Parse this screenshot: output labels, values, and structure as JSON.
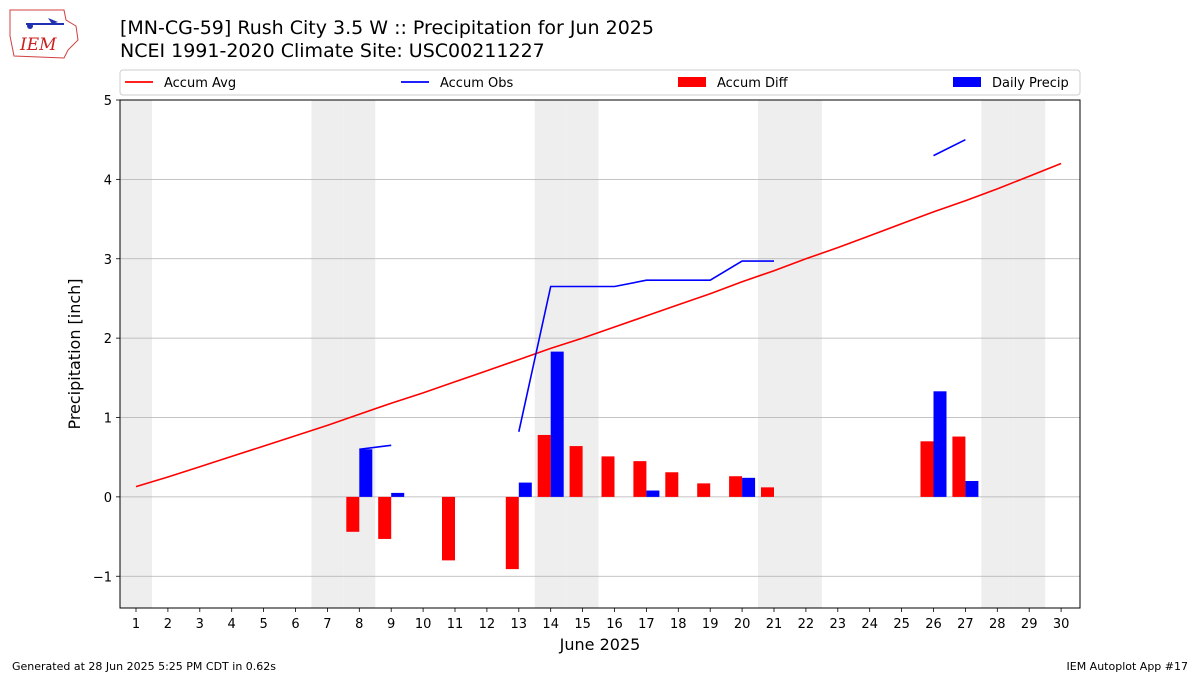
{
  "header": {
    "title_line1": "[MN-CG-59] Rush City 3.5 W :: Precipitation for Jun 2025",
    "title_line2": "NCEI 1991-2020 Climate Site: USC00211227",
    "logo_text": "IEM"
  },
  "footer": {
    "generated": "Generated at 28 Jun 2025 5:25 PM CDT in 0.62s",
    "app": "IEM Autoplot App #17"
  },
  "colors": {
    "accum_avg": "#ff0000",
    "accum_obs": "#0000ff",
    "accum_diff": "#ff0000",
    "daily_precip": "#0000ff",
    "weekend_shade": "#eeeeee",
    "grid": "#b0b0b0"
  },
  "chart_data": {
    "type": "bar",
    "xlabel": "June 2025",
    "ylabel": "Precipitation [inch]",
    "ylim": [
      -1.4,
      5.0
    ],
    "yticks": [
      -1,
      0,
      1,
      2,
      3,
      4,
      5
    ],
    "ytick_labels": [
      "−1",
      "0",
      "1",
      "2",
      "3",
      "4",
      "5"
    ],
    "x": [
      1,
      2,
      3,
      4,
      5,
      6,
      7,
      8,
      9,
      10,
      11,
      12,
      13,
      14,
      15,
      16,
      17,
      18,
      19,
      20,
      21,
      22,
      23,
      24,
      25,
      26,
      27,
      28,
      29,
      30
    ],
    "grid": "horizontal",
    "legend_position": "top",
    "weekend_days": [
      1,
      7,
      8,
      14,
      15,
      21,
      22,
      28,
      29
    ],
    "legend": [
      "Accum Avg",
      "Accum Obs",
      "Accum Diff",
      "Daily Precip"
    ],
    "series": [
      {
        "name": "Accum Avg",
        "type": "line",
        "values": [
          0.13,
          0.25,
          0.38,
          0.51,
          0.64,
          0.77,
          0.9,
          1.04,
          1.18,
          1.31,
          1.45,
          1.59,
          1.73,
          1.87,
          2.0,
          2.14,
          2.28,
          2.42,
          2.56,
          2.71,
          2.85,
          3.0,
          3.14,
          3.29,
          3.44,
          3.59,
          3.73,
          3.88,
          4.04,
          4.2
        ]
      },
      {
        "name": "Accum Obs",
        "type": "line",
        "values": [
          null,
          null,
          null,
          null,
          null,
          null,
          null,
          0.6,
          0.65,
          null,
          null,
          null,
          0.82,
          2.65,
          2.65,
          2.65,
          2.73,
          2.73,
          2.73,
          2.97,
          2.97,
          null,
          null,
          null,
          null,
          4.3,
          4.5,
          null,
          null,
          null
        ]
      },
      {
        "name": "Accum Diff",
        "type": "bar",
        "values": [
          null,
          null,
          null,
          null,
          null,
          null,
          null,
          -0.44,
          -0.53,
          null,
          -0.8,
          null,
          -0.91,
          0.78,
          0.64,
          0.51,
          0.45,
          0.31,
          0.17,
          0.26,
          0.12,
          null,
          null,
          null,
          null,
          0.7,
          0.76,
          null,
          null,
          null
        ]
      },
      {
        "name": "Daily Precip",
        "type": "bar",
        "values": [
          null,
          null,
          null,
          null,
          null,
          null,
          null,
          0.6,
          0.05,
          null,
          null,
          null,
          0.18,
          1.83,
          null,
          null,
          0.08,
          null,
          null,
          0.24,
          null,
          null,
          null,
          null,
          null,
          1.33,
          0.2,
          null,
          null,
          null
        ]
      }
    ]
  }
}
